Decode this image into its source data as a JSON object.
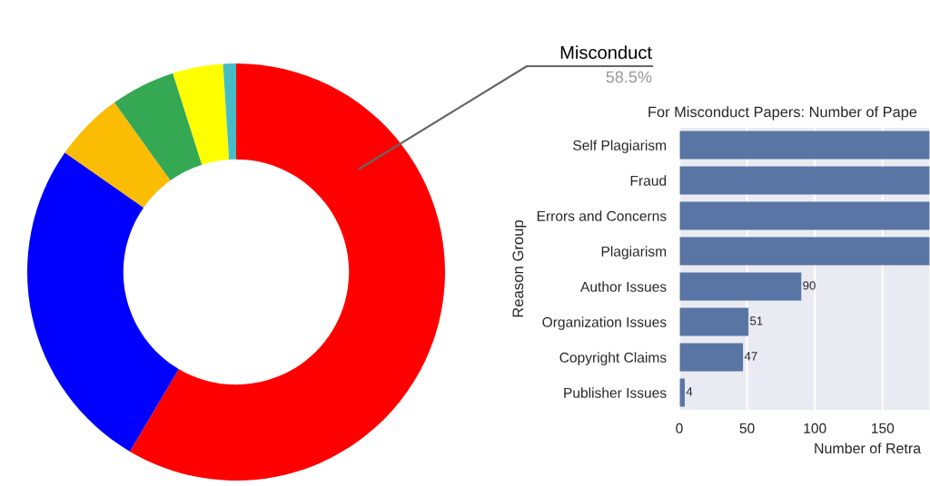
{
  "chart_data": [
    {
      "type": "donut",
      "categories": [
        "Misconduct",
        null,
        null,
        null,
        null,
        null
      ],
      "values": [
        58.5,
        26.2,
        5.4,
        5.0,
        3.9,
        1.0
      ],
      "colors": [
        "#ff0000",
        "#0000ff",
        "#fbbc04",
        "#34a853",
        "#ffff00",
        "#46bdc6"
      ],
      "value_labels": [
        "58.5%",
        null,
        null,
        null,
        null,
        null
      ]
    },
    {
      "type": "bar",
      "orientation": "horizontal",
      "title": "For Misconduct Papers: Number of Pape",
      "xlabel": "Number of Retra",
      "ylabel": "Reason Group",
      "categories": [
        "Self Plagiarism",
        "Fraud",
        "Errors and Concerns",
        "Plagiarism",
        "Author Issues",
        "Organization Issues",
        "Copyright Claims",
        "Publisher Issues"
      ],
      "values": [
        185,
        185,
        185,
        185,
        90,
        51,
        47,
        4
      ],
      "color": "#5975a4",
      "xlim": [
        0,
        185
      ],
      "xticks": [
        0,
        50,
        100,
        150
      ],
      "grid": "x",
      "value_labels": [
        null,
        null,
        null,
        null,
        "90",
        "51",
        "47",
        "4"
      ]
    }
  ]
}
